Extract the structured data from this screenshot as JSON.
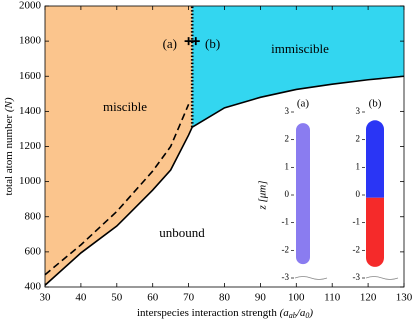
{
  "chart_data": {
    "type": "line",
    "xlim": [
      30,
      130
    ],
    "ylim": [
      400,
      2000
    ],
    "xticks": [
      30,
      40,
      50,
      60,
      70,
      80,
      90,
      100,
      110,
      120,
      130
    ],
    "yticks": [
      400,
      600,
      800,
      1000,
      1200,
      1400,
      1600,
      1800,
      2000
    ],
    "y_label": {
      "text": "total atom number",
      "symbol": "(N)"
    },
    "x_label": {
      "text": "interspecies interaction strength",
      "parts": [
        "(a",
        "ab",
        "/a",
        "0",
        ")"
      ]
    },
    "series": [
      {
        "x": [
          30,
          40,
          50,
          60,
          65,
          70,
          71
        ],
        "values": [
          410,
          594,
          747,
          952,
          1066,
          1265,
          1310
        ],
        "color": "#000000",
        "style": "solid",
        "fill": "#fbc58d"
      },
      {
        "x": [
          30,
          40,
          50,
          60,
          65,
          70
        ],
        "values": [
          470,
          640,
          830,
          1060,
          1200,
          1440
        ],
        "color": "#000000",
        "style": "dashed"
      },
      {
        "x": [
          71,
          80,
          90,
          100,
          110,
          120,
          130
        ],
        "values": [
          1310,
          1420,
          1480,
          1525,
          1555,
          1580,
          1600
        ],
        "color": "#000000",
        "style": "solid",
        "fill": "#33d6f0"
      },
      {
        "x": [
          71,
          71
        ],
        "values": [
          1310,
          2000
        ],
        "color": "#000000",
        "style": "dotted"
      }
    ],
    "points": {
      "x": [
        70,
        72
      ],
      "values": [
        1800,
        1800
      ],
      "marker": "+"
    },
    "annotations": [
      "miscible",
      "immiscible",
      "unbound",
      "(a)",
      "(b)"
    ],
    "inset": {
      "ylabel": "z [μm]",
      "zlim": [
        -3,
        3
      ],
      "zticks": [
        3,
        2,
        1,
        0,
        -1,
        -2,
        -3
      ],
      "panels": [
        {
          "label": "(a)",
          "parts": [
            {
              "extent": [
                -2.5,
                2.6
              ],
              "color": "#8a7cf0"
            }
          ]
        },
        {
          "label": "(b)",
          "parts": [
            {
              "extent": [
                -0.1,
                2.7
              ],
              "color": "#2a35f5"
            },
            {
              "extent": [
                -2.6,
                -0.1
              ],
              "color": "#f52a2a"
            }
          ]
        }
      ]
    }
  }
}
